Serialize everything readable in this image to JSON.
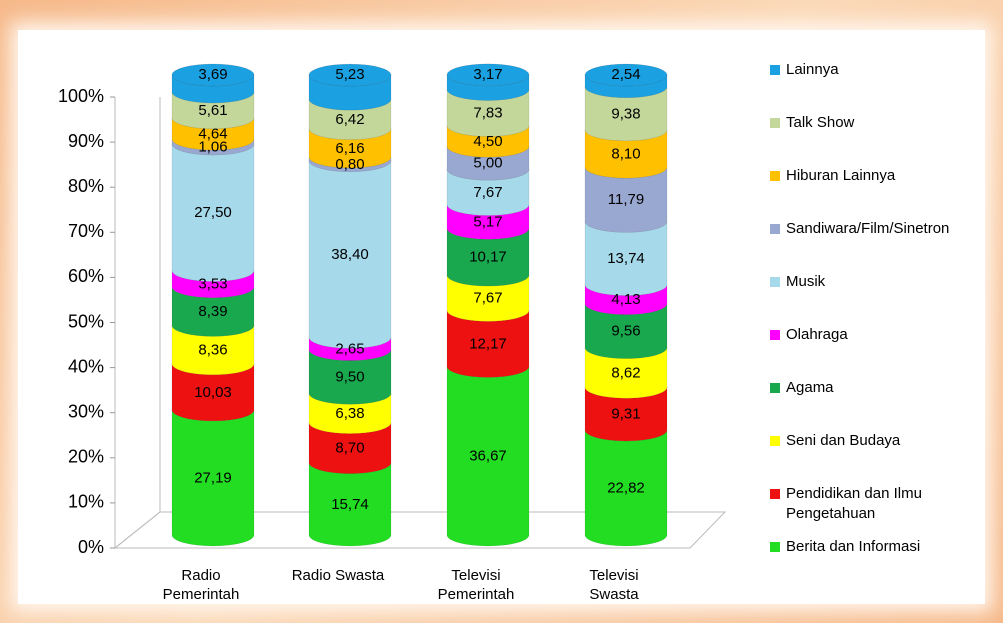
{
  "chart_data": {
    "type": "stacked_cylinder",
    "categories": [
      "Radio Pemerintah",
      "Radio Swasta",
      "Televisi Pemerintah",
      "Televisi Swasta"
    ],
    "ylim": [
      0,
      100
    ],
    "yticks": [
      {
        "value": 0,
        "label": "0%"
      },
      {
        "value": 10,
        "label": "10%"
      },
      {
        "value": 20,
        "label": "20%"
      },
      {
        "value": 30,
        "label": "30%"
      },
      {
        "value": 40,
        "label": "40%"
      },
      {
        "value": 50,
        "label": "50%"
      },
      {
        "value": 60,
        "label": "60%"
      },
      {
        "value": 70,
        "label": "70%"
      },
      {
        "value": 80,
        "label": "80%"
      },
      {
        "value": 90,
        "label": "90%"
      },
      {
        "value": 100,
        "label": "100%"
      }
    ],
    "series": [
      {
        "name": "Berita dan Informasi",
        "color": "#22dd22",
        "values": [
          27.19,
          15.74,
          36.67,
          22.82
        ],
        "value_labels": [
          "27,19",
          "15,74",
          "36,67",
          "22,82"
        ]
      },
      {
        "name": "Pendidikan dan Ilmu Pengetahuan",
        "color": "#ee1111",
        "values": [
          10.03,
          8.7,
          12.17,
          9.31
        ],
        "value_labels": [
          "10,03",
          "8,70",
          "12,17",
          "9,31"
        ]
      },
      {
        "name": "Seni dan Budaya",
        "color": "#ffff00",
        "values": [
          8.36,
          6.38,
          7.67,
          8.62
        ],
        "value_labels": [
          "8,36",
          "6,38",
          "7,67",
          "8,62"
        ]
      },
      {
        "name": "Agama",
        "color": "#1aa84f",
        "values": [
          8.39,
          9.5,
          10.17,
          9.56
        ],
        "value_labels": [
          "8,39",
          "9,50",
          "10,17",
          "9,56"
        ]
      },
      {
        "name": "Olahraga",
        "color": "#ff00ff",
        "values": [
          3.53,
          2.65,
          5.17,
          4.13
        ],
        "value_labels": [
          "3,53",
          "2,65",
          "5,17",
          "4,13"
        ]
      },
      {
        "name": "Musik",
        "color": "#a6d9ea",
        "values": [
          27.5,
          38.4,
          7.67,
          13.74
        ],
        "value_labels": [
          "27,50",
          "38,40",
          "7,67",
          "13,74"
        ]
      },
      {
        "name": "Sandiwara/Film/Sinetron",
        "color": "#99a8d0",
        "values": [
          1.06,
          0.8,
          5.0,
          11.79
        ],
        "value_labels": [
          "1,06",
          "0,80",
          "5,00",
          "11,79"
        ]
      },
      {
        "name": "Hiburan Lainnya",
        "color": "#ffc000",
        "values": [
          4.64,
          6.16,
          4.5,
          8.1
        ],
        "value_labels": [
          "4,64",
          "6,16",
          "4,50",
          "8,10"
        ]
      },
      {
        "name": "Talk Show",
        "color": "#c4d79b",
        "values": [
          5.61,
          6.42,
          7.83,
          9.38
        ],
        "value_labels": [
          "5,61",
          "6,42",
          "7,83",
          "9,38"
        ]
      },
      {
        "name": "Lainnya",
        "color": "#1ba1e2",
        "values": [
          3.69,
          5.23,
          3.17,
          2.54
        ],
        "value_labels": [
          "3,69",
          "5,23",
          "3,17",
          "2,54"
        ]
      }
    ]
  }
}
